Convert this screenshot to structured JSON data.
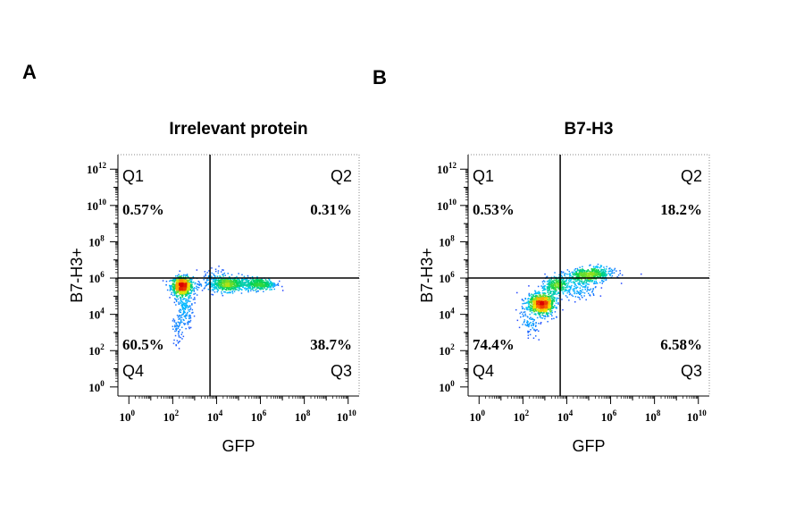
{
  "figure": {
    "panels": [
      {
        "letter": "A",
        "title": "Irrelevant protein"
      },
      {
        "letter": "B",
        "title": "B7-H3"
      }
    ]
  },
  "chart_data": [
    {
      "type": "scatter",
      "title": "Irrelevant protein",
      "xlabel": "GFP",
      "ylabel": "B7-H3+",
      "x_scale": "log",
      "y_scale": "log",
      "xlim_log10": [
        -0.5,
        10.5
      ],
      "ylim_log10": [
        -0.5,
        12.8
      ],
      "x_ticks_log10": [
        0,
        2,
        4,
        6,
        8,
        10
      ],
      "y_ticks_log10": [
        0,
        2,
        4,
        6,
        8,
        10,
        12
      ],
      "gate_log10": {
        "x": 3.7,
        "y": 6.0
      },
      "quadrants": [
        {
          "name": "Q1",
          "percent": "0.57%"
        },
        {
          "name": "Q2",
          "percent": "0.31%"
        },
        {
          "name": "Q3",
          "percent": "38.7%"
        },
        {
          "name": "Q4",
          "percent": "60.5%"
        }
      ],
      "clusters": [
        {
          "x_log10": 2.4,
          "y_log10": 5.6,
          "sx": 0.25,
          "sy": 0.25,
          "n": 700,
          "rot": 0
        },
        {
          "x_log10": 2.5,
          "y_log10": 4.6,
          "sx": 0.2,
          "sy": 0.7,
          "n": 220,
          "rot": 0
        },
        {
          "x_log10": 2.2,
          "y_log10": 3.2,
          "sx": 0.12,
          "sy": 0.4,
          "n": 50,
          "rot": 0
        },
        {
          "x_log10": 4.5,
          "y_log10": 5.7,
          "sx": 0.55,
          "sy": 0.2,
          "n": 650,
          "rot": 0
        },
        {
          "x_log10": 6.0,
          "y_log10": 5.7,
          "sx": 0.35,
          "sy": 0.16,
          "n": 320,
          "rot": 0
        },
        {
          "x_log10": 3.7,
          "y_log10": 6.3,
          "sx": 0.3,
          "sy": 0.25,
          "n": 30,
          "rot": 0
        }
      ]
    },
    {
      "type": "scatter",
      "title": "B7-H3",
      "xlabel": "GFP",
      "ylabel": "B7-H3+",
      "x_scale": "log",
      "y_scale": "log",
      "xlim_log10": [
        -0.5,
        10.5
      ],
      "ylim_log10": [
        -0.5,
        12.8
      ],
      "x_ticks_log10": [
        0,
        2,
        4,
        6,
        8,
        10
      ],
      "y_ticks_log10": [
        0,
        2,
        4,
        6,
        8,
        10,
        12
      ],
      "gate_log10": {
        "x": 3.7,
        "y": 6.0
      },
      "quadrants": [
        {
          "name": "Q1",
          "percent": "0.53%"
        },
        {
          "name": "Q2",
          "percent": "18.2%"
        },
        {
          "name": "Q3",
          "percent": "6.58%"
        },
        {
          "name": "Q4",
          "percent": "74.4%"
        }
      ],
      "clusters": [
        {
          "x_log10": 2.8,
          "y_log10": 4.6,
          "sx": 0.28,
          "sy": 0.32,
          "n": 750,
          "rot": 0.6
        },
        {
          "x_log10": 3.5,
          "y_log10": 5.6,
          "sx": 0.35,
          "sy": 0.25,
          "n": 330,
          "rot": 0.5
        },
        {
          "x_log10": 2.3,
          "y_log10": 3.6,
          "sx": 0.2,
          "sy": 0.45,
          "n": 90,
          "rot": 0.4
        },
        {
          "x_log10": 5.0,
          "y_log10": 6.2,
          "sx": 0.55,
          "sy": 0.2,
          "n": 520,
          "rot": 0.1
        },
        {
          "x_log10": 4.6,
          "y_log10": 5.4,
          "sx": 0.4,
          "sy": 0.25,
          "n": 110,
          "rot": 0
        }
      ]
    }
  ]
}
